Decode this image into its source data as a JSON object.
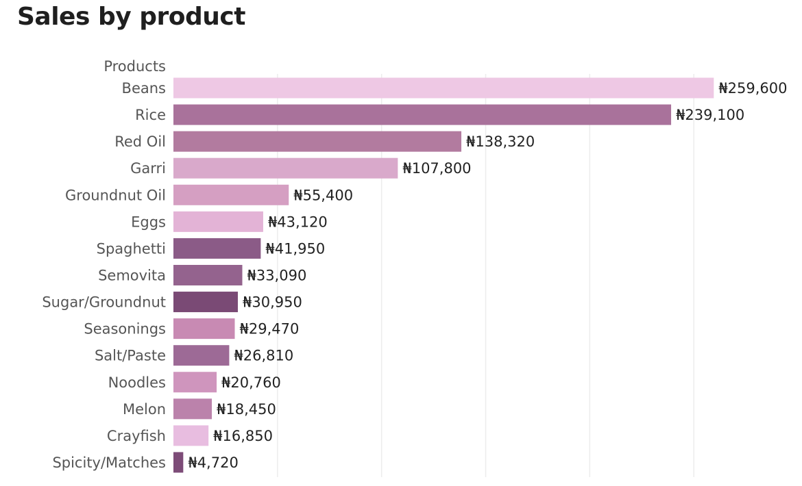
{
  "page": {
    "title": "Sales by product"
  },
  "chart_data": {
    "type": "bar",
    "orientation": "horizontal",
    "title": "Sales by product",
    "ylabel": "Products",
    "xlabel": "",
    "xlim": [
      0,
      300000
    ],
    "x_gridlines": [
      50000,
      100000,
      150000,
      200000,
      250000
    ],
    "grid": true,
    "legend": "none",
    "currency_symbol": "₦",
    "categories": [
      "Beans",
      "Rice",
      "Red Oil",
      "Garri",
      "Groundnut Oil",
      "Eggs",
      "Spaghetti",
      "Semovita",
      "Sugar/Groundnut",
      "Seasonings",
      "Salt/Paste",
      "Noodles",
      "Melon",
      "Crayfish",
      "Spicity/Matches"
    ],
    "values": [
      259600,
      239100,
      138320,
      107800,
      55400,
      43120,
      41950,
      33090,
      30950,
      29470,
      26810,
      20760,
      18450,
      16850,
      4720
    ],
    "value_labels": [
      "₦259,600",
      "₦239,100",
      "₦138,320",
      "₦107,800",
      "₦55,400",
      "₦43,120",
      "₦41,950",
      "₦33,090",
      "₦30,950",
      "₦29,470",
      "₦26,810",
      "₦20,760",
      "₦18,450",
      "₦16,850",
      "₦4,720"
    ],
    "colors": [
      "#eec8e4",
      "#a9729b",
      "#b27b9f",
      "#d9a9cb",
      "#d59fc2",
      "#e3b3d6",
      "#8b5b87",
      "#94638e",
      "#7a4a75",
      "#c88ab3",
      "#9d6a96",
      "#cf95bd",
      "#bb82ab",
      "#e8bde0",
      "#7d4c78"
    ]
  }
}
